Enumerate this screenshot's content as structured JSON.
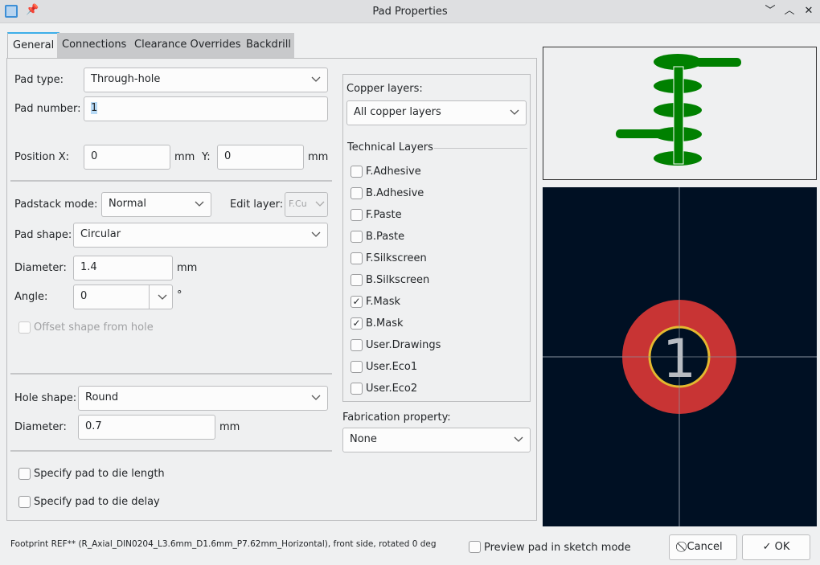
{
  "window": {
    "title": "Pad Properties",
    "icons": [
      "app-footprint-icon",
      "pin-icon",
      "minimize-icon",
      "maximize-icon",
      "close-icon"
    ]
  },
  "tabs": [
    "General",
    "Connections",
    "Clearance Overrides",
    "Backdrill"
  ],
  "general": {
    "pad_type_label": "Pad type:",
    "pad_type": "Through-hole",
    "pad_number_label": "Pad number:",
    "pad_number": "1",
    "pos_x_label": "Position X:",
    "pos_x": "0",
    "pos_y_label": "Y:",
    "pos_y": "0",
    "unit": "mm",
    "padstack_label": "Padstack mode:",
    "padstack": "Normal",
    "edit_layer_label": "Edit layer:",
    "edit_layer": "F.Cu",
    "pad_shape_label": "Pad shape:",
    "pad_shape": "Circular",
    "diameter_label": "Diameter:",
    "diameter": "1.4",
    "angle_label": "Angle:",
    "angle": "0",
    "angle_unit": "°",
    "offset_label": "Offset shape from hole",
    "hole_shape_label": "Hole shape:",
    "hole_shape": "Round",
    "hole_diameter_label": "Diameter:",
    "hole_diameter": "0.7",
    "die_length_label": "Specify pad to die length",
    "die_delay_label": "Specify pad to die delay"
  },
  "layers": {
    "copper_label": "Copper layers:",
    "copper": "All copper layers",
    "technical_label": "Technical Layers",
    "items": [
      {
        "name": "F.Adhesive",
        "checked": false
      },
      {
        "name": "B.Adhesive",
        "checked": false
      },
      {
        "name": "F.Paste",
        "checked": false
      },
      {
        "name": "B.Paste",
        "checked": false
      },
      {
        "name": "F.Silkscreen",
        "checked": false
      },
      {
        "name": "B.Silkscreen",
        "checked": false
      },
      {
        "name": "F.Mask",
        "checked": true
      },
      {
        "name": "B.Mask",
        "checked": true
      },
      {
        "name": "User.Drawings",
        "checked": false
      },
      {
        "name": "User.Eco1",
        "checked": false
      },
      {
        "name": "User.Eco2",
        "checked": false
      }
    ],
    "fab_label": "Fabrication property:",
    "fab": "None"
  },
  "preview": {
    "pad_number": "1",
    "colors": {
      "background": "#001023",
      "pad": "#c83434",
      "hole_ring": "#e3b82f",
      "stack": "#008000"
    }
  },
  "footer": {
    "status": "Footprint REF** (R_Axial_DIN0204_L3.6mm_D1.6mm_P7.62mm_Horizontal), front side, rotated 0 deg",
    "sketch_label": "Preview pad in sketch mode",
    "cancel": "Cancel",
    "ok": "OK"
  }
}
